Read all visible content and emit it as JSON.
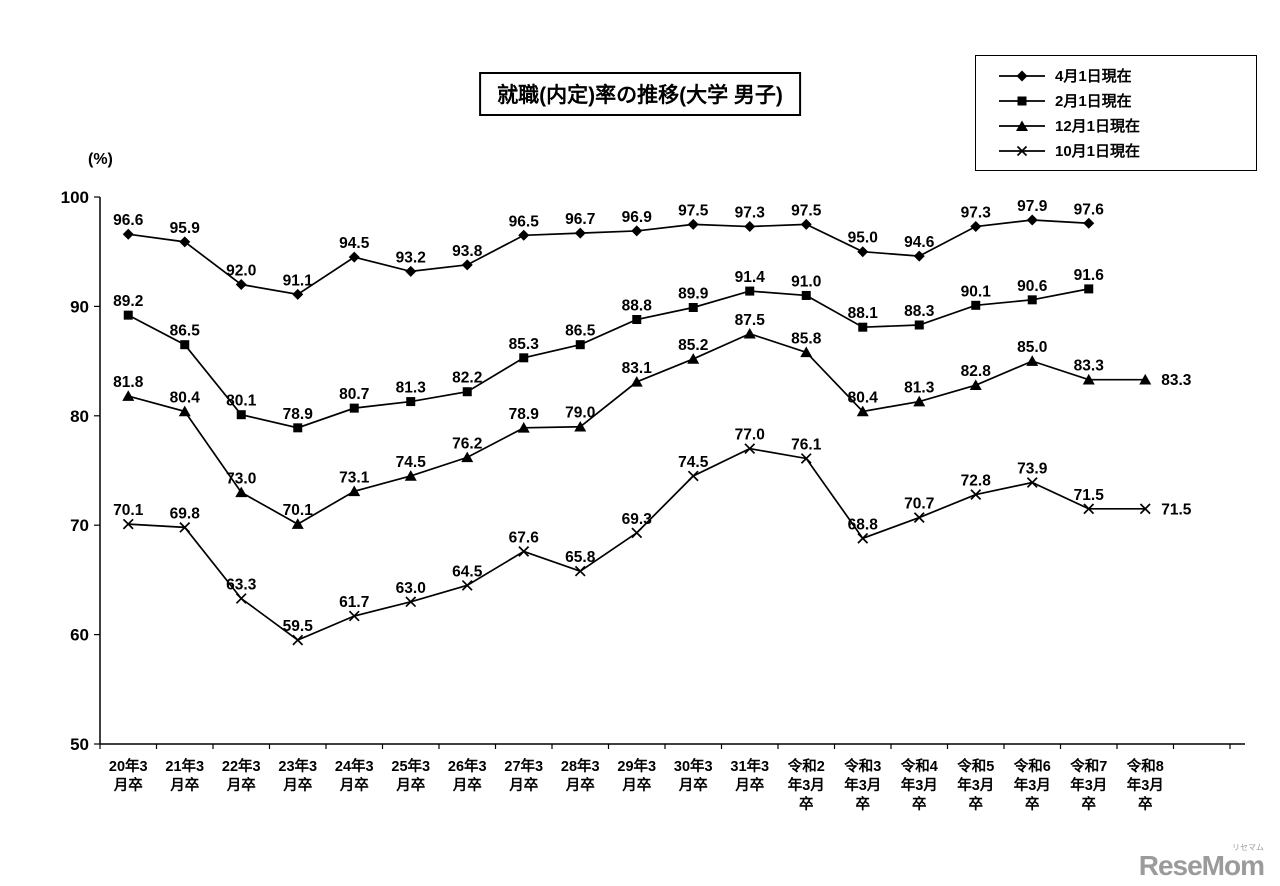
{
  "watermark": {
    "text": "ReseMom",
    "kana": "リセマム"
  },
  "chart_data": {
    "type": "line",
    "title": "就職(内定)率の推移(大学 男子)",
    "ylabel": "(%)",
    "ylim": [
      50,
      100
    ],
    "yticks": [
      100,
      90,
      80,
      70,
      60,
      50
    ],
    "grid": false,
    "legend_position": "top-right",
    "line_color": "#000000",
    "categories": [
      [
        "20年3",
        "月卒"
      ],
      [
        "21年3",
        "月卒"
      ],
      [
        "22年3",
        "月卒"
      ],
      [
        "23年3",
        "月卒"
      ],
      [
        "24年3",
        "月卒"
      ],
      [
        "25年3",
        "月卒"
      ],
      [
        "26年3",
        "月卒"
      ],
      [
        "27年3",
        "月卒"
      ],
      [
        "28年3",
        "月卒"
      ],
      [
        "29年3",
        "月卒"
      ],
      [
        "30年3",
        "月卒"
      ],
      [
        "31年3",
        "月卒"
      ],
      [
        "令和2",
        "年3月",
        "卒"
      ],
      [
        "令和3",
        "年3月",
        "卒"
      ],
      [
        "令和4",
        "年3月",
        "卒"
      ],
      [
        "令和5",
        "年3月",
        "卒"
      ],
      [
        "令和6",
        "年3月",
        "卒"
      ],
      [
        "令和7",
        "年3月",
        "卒"
      ],
      [
        "令和8",
        "年3月",
        "卒"
      ]
    ],
    "series": [
      {
        "name": "4月1日現在",
        "marker": "diamond",
        "values": [
          96.6,
          95.9,
          92.0,
          91.1,
          94.5,
          93.2,
          93.8,
          96.5,
          96.7,
          96.9,
          97.5,
          97.3,
          97.5,
          95.0,
          94.6,
          97.3,
          97.9,
          97.6,
          null
        ]
      },
      {
        "name": "2月1日現在",
        "marker": "square",
        "values": [
          89.2,
          86.5,
          80.1,
          78.9,
          80.7,
          81.3,
          82.2,
          85.3,
          86.5,
          88.8,
          89.9,
          91.4,
          91.0,
          88.1,
          88.3,
          90.1,
          90.6,
          91.6,
          null
        ]
      },
      {
        "name": "12月1日現在",
        "marker": "triangle",
        "values": [
          81.8,
          80.4,
          73.0,
          70.1,
          73.1,
          74.5,
          76.2,
          78.9,
          79.0,
          83.1,
          85.2,
          87.5,
          85.8,
          80.4,
          81.3,
          82.8,
          85.0,
          83.3,
          83.3
        ]
      },
      {
        "name": "10月1日現在",
        "marker": "x",
        "values": [
          70.1,
          69.8,
          63.3,
          59.5,
          61.7,
          63.0,
          64.5,
          67.6,
          65.8,
          69.3,
          74.5,
          77.0,
          76.1,
          68.8,
          70.7,
          72.8,
          73.9,
          71.5,
          71.5
        ]
      }
    ]
  }
}
